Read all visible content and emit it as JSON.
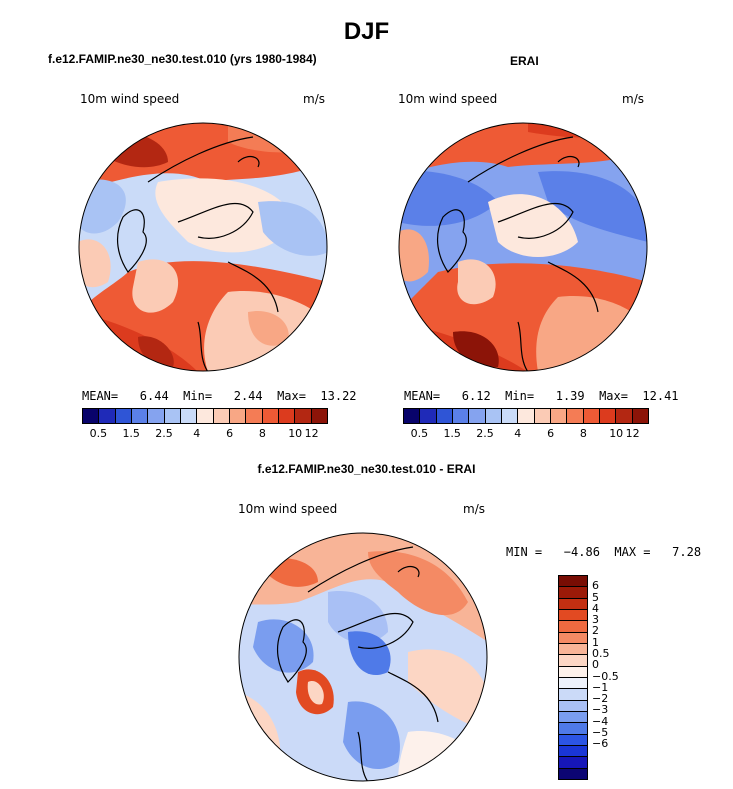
{
  "title": "DJF",
  "colors": {
    "abs": [
      "#08036b",
      "#1f2ab8",
      "#2f55d6",
      "#5b80e8",
      "#85a3ef",
      "#a9c3f4",
      "#cadbf8",
      "#fde8dd",
      "#fbcbb5",
      "#f8a785",
      "#f47c55",
      "#ee5a35",
      "#dc3b1e",
      "#b32712",
      "#8c1408"
    ],
    "diff": [
      "#0c0573",
      "#1616b8",
      "#1a36d6",
      "#2c55e4",
      "#4f7ae8",
      "#7a9def",
      "#a9c0f5",
      "#cbdaf8",
      "#eef2fb",
      "#fdf1eb",
      "#fcd6c4",
      "#f8b497",
      "#f48a64",
      "#ef6a40",
      "#e24a22",
      "#c32f12",
      "#9c1a08",
      "#780d04"
    ]
  },
  "panels": {
    "model": {
      "heading": "f.e12.FAMIP.ne30_ne30.test.010 (yrs 1980-1984)",
      "variable": "10m wind speed",
      "units": "m/s",
      "stats": "MEAN=   6.44  Min=   2.44  Max=  13.22",
      "ticks": [
        "0.5",
        "1.5",
        "2.5",
        "4",
        "6",
        "8",
        "10",
        "12"
      ]
    },
    "obs": {
      "heading": "ERAI",
      "variable": "10m wind speed",
      "units": "m/s",
      "stats": "MEAN=   6.12  Min=   1.39  Max=  12.41",
      "ticks": [
        "0.5",
        "1.5",
        "2.5",
        "4",
        "6",
        "8",
        "10",
        "12"
      ]
    },
    "diff": {
      "heading": "f.e12.FAMIP.ne30_ne30.test.010 - ERAI",
      "variable": "10m wind speed",
      "units": "m/s",
      "stats": "MIN =   −4.86  MAX =   7.28",
      "ticks": [
        "6",
        "5",
        "4",
        "3",
        "2",
        "1",
        "0.5",
        "0",
        "−0.5",
        "−1",
        "−2",
        "−3",
        "−4",
        "−5",
        "−6"
      ]
    }
  }
}
